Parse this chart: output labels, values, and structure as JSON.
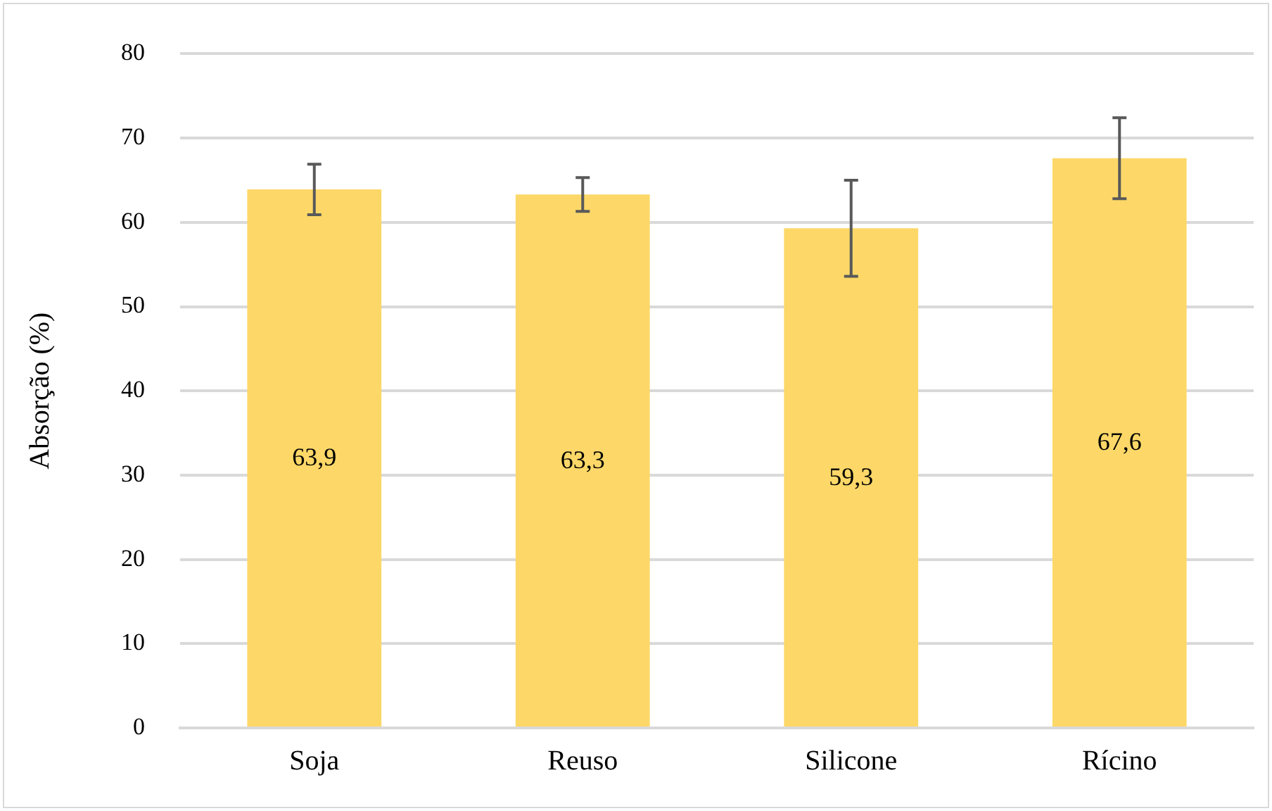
{
  "chart_data": {
    "type": "bar",
    "ylabel": "Absorção (%)",
    "categories": [
      "Soja",
      "Reuso",
      "Silicone",
      "Rícino"
    ],
    "values": [
      63.9,
      63.3,
      59.3,
      67.6
    ],
    "errors": [
      3.0,
      2.0,
      5.7,
      4.8
    ],
    "color": "#fdd868",
    "ylim": [
      0,
      80
    ],
    "yticks": [
      0,
      10,
      20,
      30,
      40,
      50,
      60,
      70,
      80
    ],
    "grid": "y",
    "value_labels": [
      "63,9",
      "63,3",
      "59,3",
      "67,6"
    ]
  }
}
